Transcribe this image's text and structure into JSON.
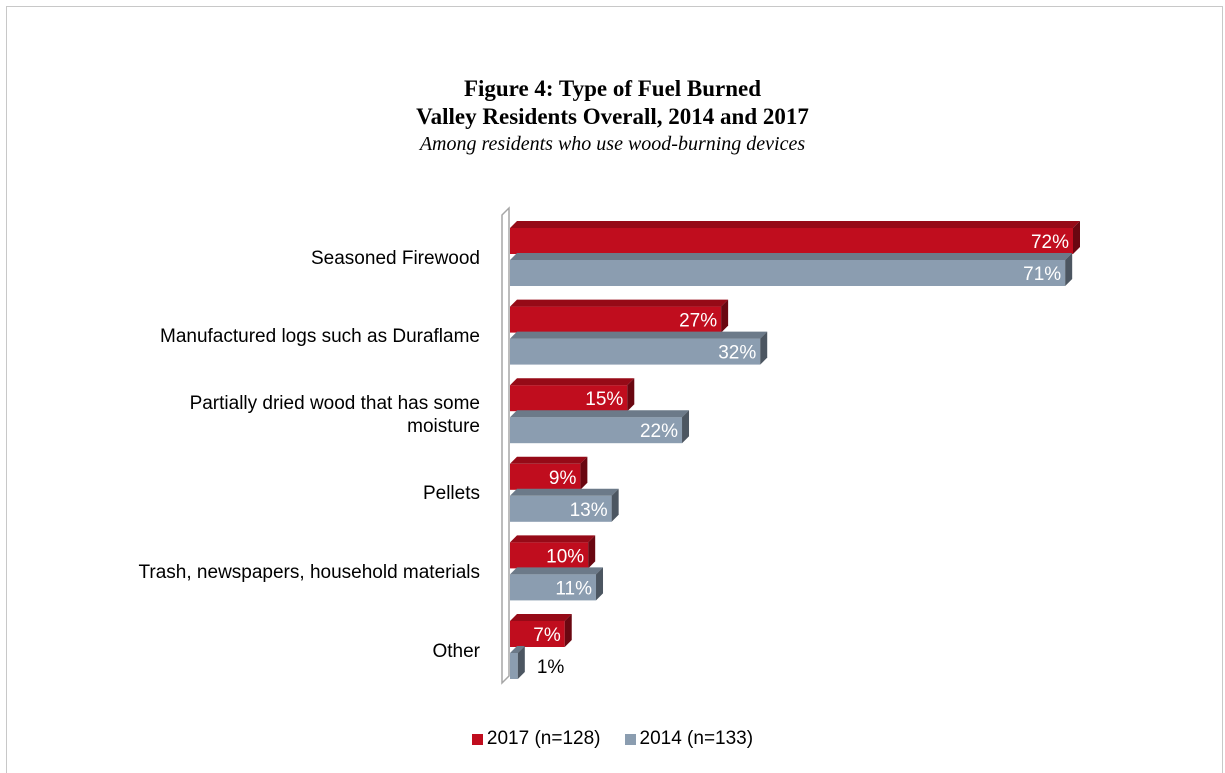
{
  "chart_data": {
    "type": "bar",
    "orientation": "horizontal",
    "title_line1": "Figure 4: Type of Fuel Burned",
    "title_line2": "Valley Residents Overall, 2014 and 2017",
    "subtitle": "Among residents who use wood-burning devices",
    "categories": [
      [
        "Seasoned Firewood"
      ],
      [
        "Manufactured logs such as Duraflame"
      ],
      [
        "Partially dried wood that has some",
        "moisture"
      ],
      [
        "Pellets"
      ],
      [
        "Trash, newspapers, household materials"
      ],
      [
        "Other"
      ]
    ],
    "series": [
      {
        "name": "2017 (n=128)",
        "color": "#c00d1e",
        "values": [
          72,
          27,
          15,
          9,
          10,
          7
        ],
        "labels": [
          "72%",
          "27%",
          "15%",
          "9%",
          "10%",
          "7%"
        ]
      },
      {
        "name": "2014 (n=133)",
        "color": "#8b9db0",
        "values": [
          71,
          32,
          22,
          13,
          11,
          1
        ],
        "labels": [
          "71%",
          "32%",
          "22%",
          "13%",
          "11%",
          "1%"
        ]
      }
    ],
    "xlim": [
      0,
      75
    ],
    "grid": false,
    "legend_position": "bottom",
    "style": "3d-bars"
  }
}
